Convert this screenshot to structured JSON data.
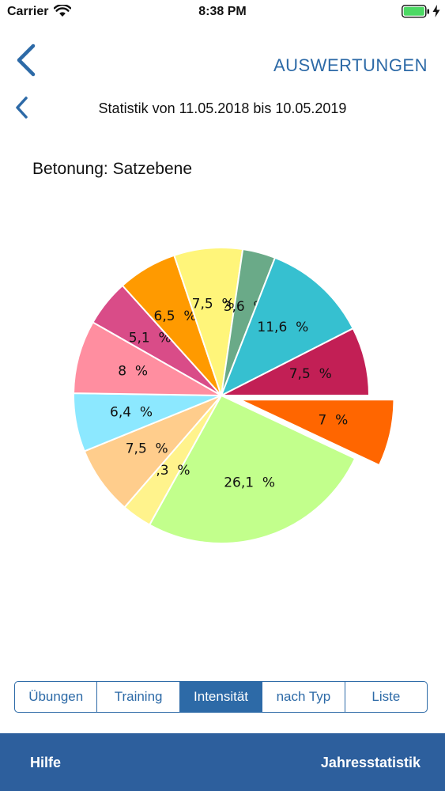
{
  "status_bar": {
    "carrier": "Carrier",
    "time": "8:38 PM"
  },
  "nav": {
    "title": "AUSWERTUNGEN",
    "period": "Statistik von 11.05.2018 bis 10.05.2019"
  },
  "chart_heading": "Betonung: Satzebene",
  "chart_data": {
    "type": "pie",
    "title": "",
    "slices": [
      {
        "value": 7.0,
        "label": "7  %",
        "color": "#ff6600",
        "exploded": true
      },
      {
        "value": 26.1,
        "label": "26,1  %",
        "color": "#c2ff8c"
      },
      {
        "value": 3.3,
        "label": "3,3  %",
        "color": "#fff38c"
      },
      {
        "value": 7.5,
        "label": "7,5  %",
        "color": "#ffcd8c"
      },
      {
        "value": 6.4,
        "label": "6,4  %",
        "color": "#8ce8ff"
      },
      {
        "value": 8.0,
        "label": "8  %",
        "color": "#ff8ea0"
      },
      {
        "value": 5.1,
        "label": "5,1  %",
        "color": "#d94c88"
      },
      {
        "value": 6.5,
        "label": "6,5  %",
        "color": "#ff9a00"
      },
      {
        "value": 7.5,
        "label": "7,5  %",
        "color": "#fff57a"
      },
      {
        "value": 3.6,
        "label": "3,6  %",
        "color": "#6aaa88"
      },
      {
        "value": 11.6,
        "label": "11,6  %",
        "color": "#36c0d0"
      },
      {
        "value": 7.5,
        "label": "7,5  %",
        "color": "#c21f55"
      }
    ]
  },
  "tabs": [
    {
      "label": "Übungen",
      "active": false
    },
    {
      "label": "Training",
      "active": false
    },
    {
      "label": "Intensität",
      "active": true
    },
    {
      "label": "nach Typ",
      "active": false
    },
    {
      "label": "Liste",
      "active": false
    }
  ],
  "bottom_bar": {
    "left_label": "Hilfe",
    "right_label": "Jahresstatistik"
  },
  "colors": {
    "accent": "#2d6aa7",
    "bottom_bar": "#2d5f9d"
  },
  "icons": {
    "wifi": "wifi-icon",
    "battery": "battery-icon",
    "back": "chevron-left-icon"
  }
}
